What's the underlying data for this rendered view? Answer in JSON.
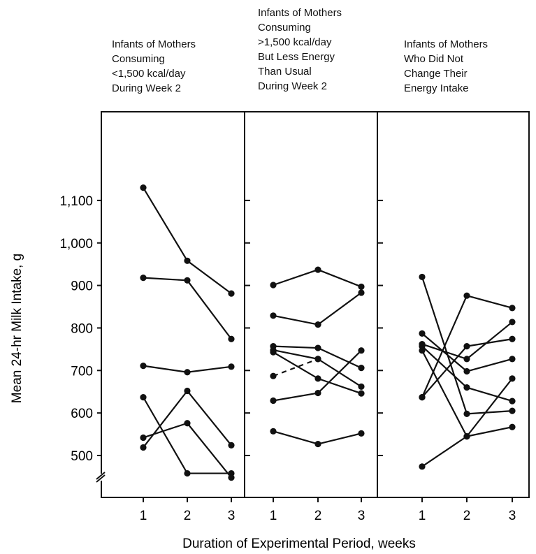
{
  "chart_data": {
    "type": "line",
    "xlabel": "Duration of Experimental Period, weeks",
    "ylabel": "Mean 24-hr Milk Intake, g",
    "yticks": [
      "500",
      "600",
      "700",
      "800",
      "900",
      "1,000",
      "1,100"
    ],
    "ylim": [
      400,
      1100
    ],
    "axis_break": true,
    "grid": false,
    "panels": [
      {
        "title_lines": [
          "Infants of Mothers",
          "Consuming",
          "<1,500 kcal/day",
          "During Week 2"
        ],
        "xticks": [
          "1",
          "2",
          "3"
        ],
        "series": [
          {
            "x": [
              1,
              2,
              3
            ],
            "y": [
              1130,
              958,
              881
            ],
            "dashed": false
          },
          {
            "x": [
              1,
              2,
              3
            ],
            "y": [
              918,
              912,
              774
            ],
            "dashed": false
          },
          {
            "x": [
              1,
              2,
              3
            ],
            "y": [
              711,
              696,
              709
            ],
            "dashed": false
          },
          {
            "x": [
              1,
              2,
              3
            ],
            "y": [
              637,
              458,
              458
            ],
            "dashed": false
          },
          {
            "x": [
              1,
              2,
              3
            ],
            "y": [
              542,
              576,
              448
            ],
            "dashed": false
          },
          {
            "x": [
              1,
              2,
              3
            ],
            "y": [
              519,
              652,
              524
            ],
            "dashed": false
          }
        ]
      },
      {
        "title_lines": [
          "Infants of Mothers",
          "Consuming",
          ">1,500 kcal/day",
          "But Less Energy",
          "Than Usual",
          "During Week 2"
        ],
        "xticks": [
          "1",
          "2",
          "3"
        ],
        "series": [
          {
            "x": [
              1,
              2,
              3
            ],
            "y": [
              901,
              937,
              897
            ],
            "dashed": false
          },
          {
            "x": [
              1,
              2,
              3
            ],
            "y": [
              829,
              808,
              883
            ],
            "dashed": false
          },
          {
            "x": [
              1,
              2,
              3
            ],
            "y": [
              757,
              753,
              706
            ],
            "dashed": false
          },
          {
            "x": [
              1,
              2,
              3
            ],
            "y": [
              743,
              681,
              646
            ],
            "dashed": false
          },
          {
            "x": [
              1,
              2,
              3
            ],
            "y": [
              748,
              727,
              662
            ],
            "dashed": false
          },
          {
            "x": [
              1,
              2
            ],
            "y": [
              687,
              727
            ],
            "dashed": true
          },
          {
            "x": [
              1,
              2,
              3
            ],
            "y": [
              629,
              647,
              747
            ],
            "dashed": false
          },
          {
            "x": [
              1,
              2,
              3
            ],
            "y": [
              557,
              527,
              552
            ],
            "dashed": false
          }
        ]
      },
      {
        "title_lines": [
          "Infants of Mothers",
          "Who Did Not",
          "Change Their",
          "Energy Intake"
        ],
        "xticks": [
          "1",
          "2",
          "3"
        ],
        "series": [
          {
            "x": [
              1,
              2,
              3
            ],
            "y": [
              920,
              598,
              605
            ],
            "dashed": false
          },
          {
            "x": [
              1,
              2,
              3
            ],
            "y": [
              787,
              698,
              727
            ],
            "dashed": false
          },
          {
            "x": [
              1,
              2,
              3
            ],
            "y": [
              762,
              727,
              814
            ],
            "dashed": false
          },
          {
            "x": [
              1,
              2,
              3
            ],
            "y": [
              747,
              545,
              567
            ],
            "dashed": false
          },
          {
            "x": [
              1,
              2,
              3
            ],
            "y": [
              757,
              660,
              628
            ],
            "dashed": false
          },
          {
            "x": [
              1,
              2,
              3
            ],
            "y": [
              637,
              876,
              847
            ],
            "dashed": false
          },
          {
            "x": [
              1,
              2,
              3
            ],
            "y": [
              637,
              757,
              774
            ],
            "dashed": false
          },
          {
            "x": [
              1,
              2,
              3
            ],
            "y": [
              474,
              545,
              681
            ],
            "dashed": false
          }
        ]
      }
    ]
  }
}
